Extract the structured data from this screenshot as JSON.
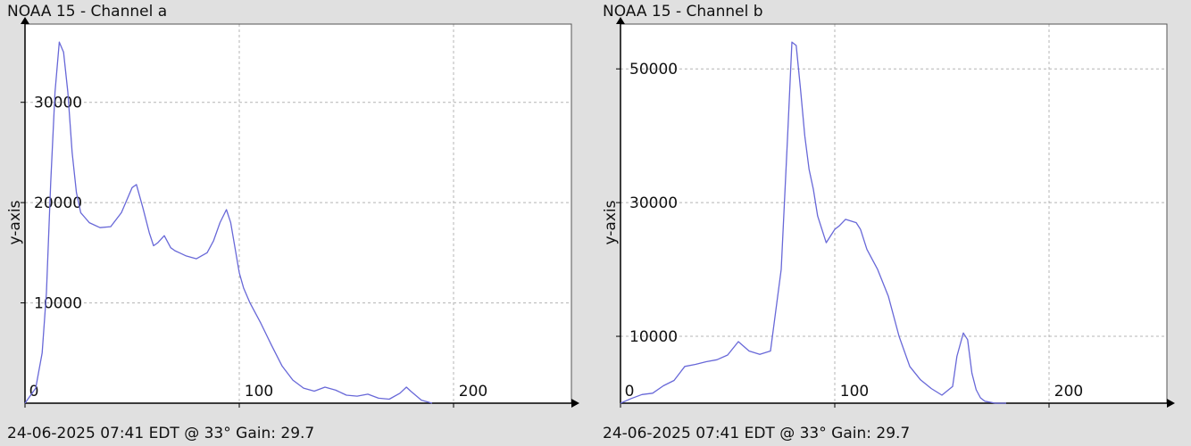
{
  "colors": {
    "background": "#e0e0e0",
    "plot_background": "#ffffff",
    "grid": "#b4b4b4",
    "line": "#6868d8",
    "axis": "#000000"
  },
  "chart_data": [
    {
      "type": "line",
      "title": "NOAA 15 - Channel a",
      "footer": "24-06-2025 07:41 EDT @ 33° Gain: 29.7",
      "xlabel": "",
      "ylabel": "y-axis",
      "xlim": [
        0,
        255
      ],
      "ylim": [
        0,
        37800
      ],
      "grid": true,
      "x_ticks": [
        0,
        100,
        200
      ],
      "y_ticks": [
        10000,
        20000,
        30000
      ],
      "tick_labels": {
        "x": [
          "0",
          "100",
          "200"
        ],
        "y": [
          "10000",
          "20000",
          "30000"
        ]
      },
      "series": [
        {
          "x": [
            0,
            5,
            8,
            10,
            12,
            14,
            16,
            18,
            20,
            22,
            24,
            26,
            28,
            30,
            35,
            40,
            45,
            50,
            52,
            55,
            58,
            60,
            62,
            65,
            68,
            70,
            72,
            75,
            80,
            85,
            88,
            91,
            94,
            96,
            98,
            100,
            102,
            105,
            110,
            115,
            120,
            125,
            130,
            135,
            140,
            145,
            150,
            155,
            160,
            165,
            170,
            175,
            178,
            180,
            185,
            190
          ],
          "y": [
            0,
            1500,
            5000,
            11000,
            22000,
            31000,
            36000,
            35000,
            31000,
            25000,
            21000,
            19000,
            18500,
            18000,
            17500,
            17600,
            19000,
            21500,
            21800,
            19500,
            17000,
            15700,
            16000,
            16700,
            15500,
            15200,
            15000,
            14700,
            14400,
            15000,
            16200,
            18000,
            19300,
            18000,
            15500,
            13000,
            11500,
            10000,
            8000,
            5800,
            3700,
            2300,
            1500,
            1200,
            1600,
            1300,
            800,
            700,
            900,
            500,
            400,
            1000,
            1600,
            1200,
            300,
            0
          ]
        }
      ]
    },
    {
      "type": "line",
      "title": "NOAA 15 - Channel b",
      "footer": "24-06-2025 07:41 EDT @ 33° Gain: 29.7",
      "xlabel": "",
      "ylabel": "y-axis",
      "xlim": [
        0,
        255
      ],
      "ylim": [
        0,
        56700
      ],
      "grid": true,
      "x_ticks": [
        0,
        100,
        200
      ],
      "y_ticks": [
        10000,
        30000,
        50000
      ],
      "tick_labels": {
        "x": [
          "0",
          "100",
          "200"
        ],
        "y": [
          "10000",
          "30000",
          "50000"
        ]
      },
      "series": [
        {
          "x": [
            0,
            5,
            10,
            15,
            20,
            25,
            30,
            35,
            40,
            45,
            50,
            55,
            60,
            62,
            65,
            70,
            75,
            78,
            80,
            82,
            84,
            86,
            88,
            90,
            92,
            94,
            96,
            98,
            100,
            102,
            105,
            110,
            112,
            115,
            120,
            125,
            130,
            135,
            140,
            145,
            150,
            155,
            157,
            160,
            162,
            164,
            166,
            168,
            170,
            175,
            180
          ],
          "y": [
            0,
            700,
            1300,
            1500,
            2600,
            3400,
            5500,
            5800,
            6200,
            6500,
            7200,
            9200,
            7800,
            7600,
            7300,
            7800,
            20000,
            40000,
            54000,
            53500,
            47000,
            40000,
            35000,
            32000,
            28000,
            26000,
            24000,
            25000,
            26000,
            26500,
            27500,
            27000,
            26000,
            23000,
            20000,
            16000,
            10000,
            5500,
            3500,
            2200,
            1200,
            2500,
            7000,
            10500,
            9500,
            4500,
            2000,
            800,
            300,
            0,
            0
          ]
        }
      ]
    }
  ]
}
